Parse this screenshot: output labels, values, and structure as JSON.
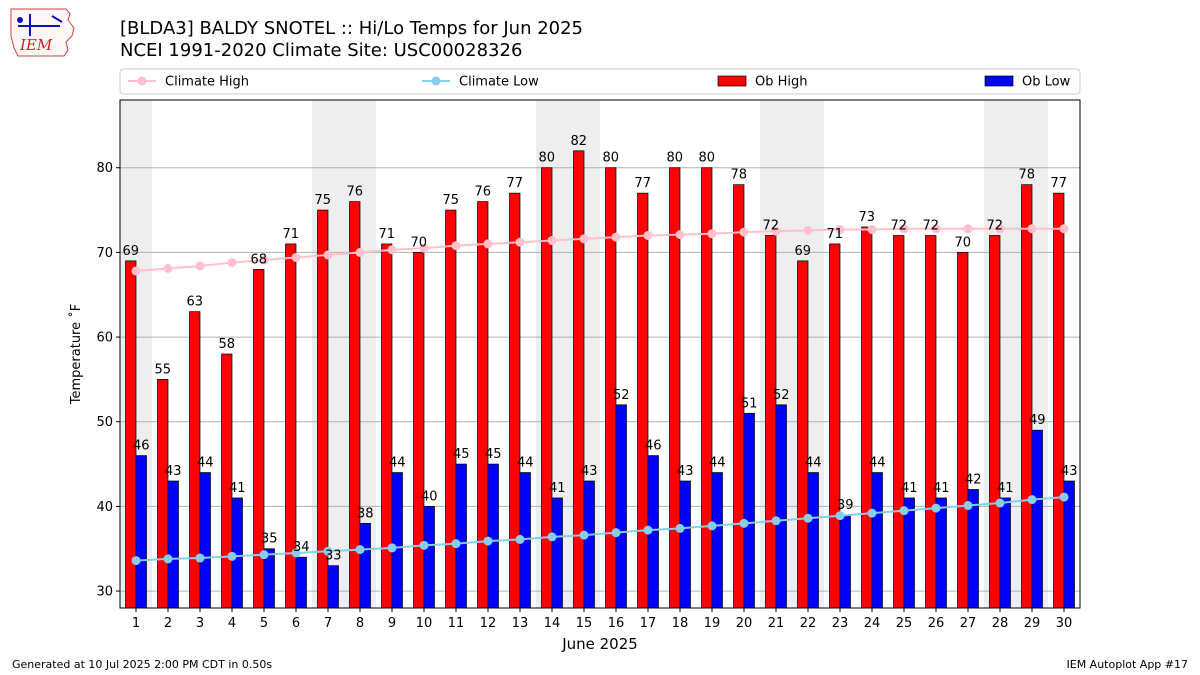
{
  "header": {
    "title_line1": "[BLDA3] BALDY SNOTEL :: Hi/Lo Temps for Jun 2025",
    "title_line2": "NCEI 1991-2020 Climate Site: USC00028326",
    "logo_text": "IEM"
  },
  "footer": {
    "left": "Generated at 10 Jul 2025 2:00 PM CDT in 0.50s",
    "right": "IEM Autoplot App #17"
  },
  "colors": {
    "ob_high": "#ff0000",
    "ob_low": "#0000ff",
    "climate_high": "#ffc0cb",
    "climate_low": "#87ceeb",
    "weekend_band": "#eeeeee"
  },
  "chart_data": {
    "type": "bar",
    "xlabel": "June 2025",
    "ylabel": "Temperature ˚F",
    "ylim": [
      28,
      88
    ],
    "yticks": [
      30,
      40,
      50,
      60,
      70,
      80
    ],
    "grid": "horizontal",
    "legend_placement": "top",
    "categories": [
      "1",
      "2",
      "3",
      "4",
      "5",
      "6",
      "7",
      "8",
      "9",
      "10",
      "11",
      "12",
      "13",
      "14",
      "15",
      "16",
      "17",
      "18",
      "19",
      "20",
      "21",
      "22",
      "23",
      "24",
      "25",
      "26",
      "27",
      "28",
      "29",
      "30"
    ],
    "shaded_days": [
      1,
      7,
      8,
      14,
      15,
      21,
      22,
      28,
      29
    ],
    "series": [
      {
        "name": "Ob High",
        "kind": "bar",
        "values": [
          69,
          55,
          63,
          58,
          68,
          71,
          75,
          76,
          71,
          70,
          75,
          76,
          77,
          80,
          82,
          80,
          77,
          80,
          80,
          78,
          72,
          69,
          71,
          73,
          72,
          72,
          70,
          72,
          78,
          77
        ]
      },
      {
        "name": "Ob Low",
        "kind": "bar",
        "values": [
          46,
          43,
          44,
          41,
          35,
          34,
          33,
          38,
          44,
          40,
          45,
          45,
          44,
          41,
          43,
          52,
          46,
          43,
          44,
          51,
          52,
          44,
          39,
          44,
          41,
          41,
          42,
          41,
          49,
          43
        ]
      },
      {
        "name": "Climate High",
        "kind": "line",
        "values": [
          67.8,
          68.1,
          68.4,
          68.8,
          69.1,
          69.4,
          69.7,
          70.0,
          70.3,
          70.5,
          70.8,
          71.0,
          71.2,
          71.4,
          71.6,
          71.8,
          72.0,
          72.1,
          72.2,
          72.4,
          72.5,
          72.6,
          72.7,
          72.7,
          72.8,
          72.8,
          72.8,
          72.8,
          72.8,
          72.8
        ]
      },
      {
        "name": "Climate Low",
        "kind": "line",
        "values": [
          33.6,
          33.8,
          33.9,
          34.1,
          34.3,
          34.5,
          34.7,
          34.9,
          35.1,
          35.4,
          35.6,
          35.9,
          36.1,
          36.4,
          36.6,
          36.9,
          37.2,
          37.4,
          37.7,
          38.0,
          38.3,
          38.6,
          38.9,
          39.2,
          39.5,
          39.8,
          40.1,
          40.4,
          40.8,
          41.1
        ]
      }
    ]
  }
}
